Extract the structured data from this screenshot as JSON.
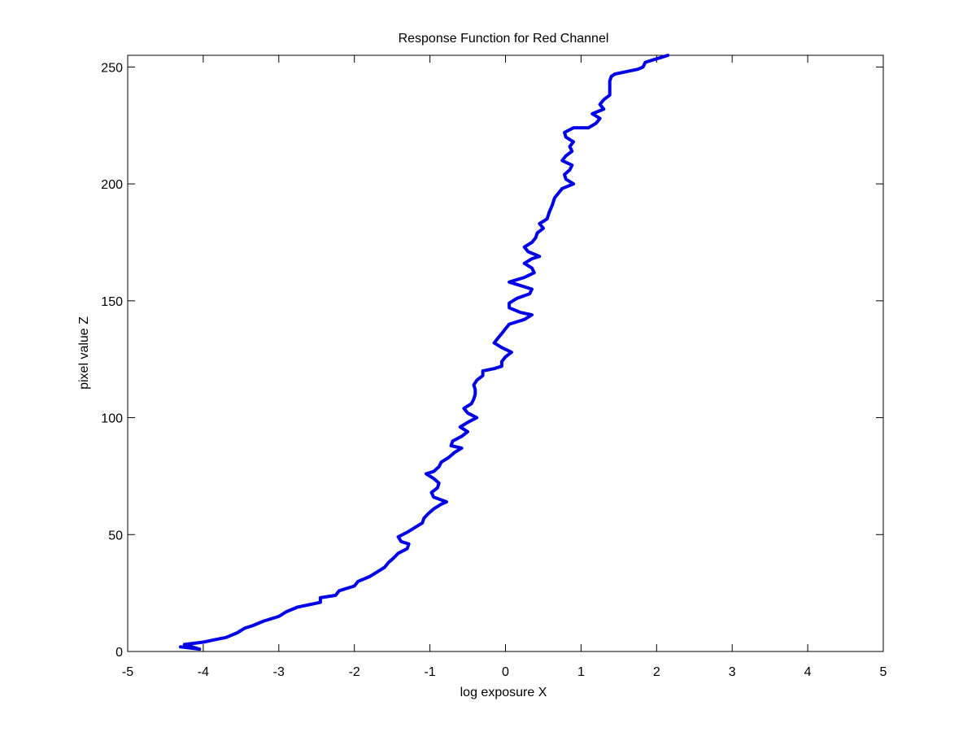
{
  "chart_data": {
    "type": "line",
    "title": "Response Function for Red Channel",
    "xlabel": "log exposure X",
    "ylabel": "pixel value Z",
    "xlim": [
      -5,
      5
    ],
    "ylim": [
      0,
      255
    ],
    "xticks": [
      -5,
      -4,
      -3,
      -2,
      -1,
      0,
      1,
      2,
      3,
      4,
      5
    ],
    "yticks": [
      0,
      50,
      100,
      150,
      200,
      250
    ],
    "grid": false,
    "series": [
      {
        "color": "#0000e6",
        "points": [
          [
            -4.3,
            2
          ],
          [
            -4.05,
            1
          ],
          [
            -4.25,
            3
          ],
          [
            -4.0,
            4
          ],
          [
            -3.85,
            5
          ],
          [
            -3.7,
            6
          ],
          [
            -3.55,
            8
          ],
          [
            -3.45,
            10
          ],
          [
            -3.35,
            11
          ],
          [
            -3.2,
            13
          ],
          [
            -3.0,
            15
          ],
          [
            -2.9,
            17
          ],
          [
            -2.75,
            19
          ],
          [
            -2.6,
            20
          ],
          [
            -2.45,
            21
          ],
          [
            -2.45,
            23
          ],
          [
            -2.25,
            24
          ],
          [
            -2.2,
            26
          ],
          [
            -2.0,
            28
          ],
          [
            -1.95,
            30
          ],
          [
            -1.8,
            32
          ],
          [
            -1.7,
            34
          ],
          [
            -1.6,
            36
          ],
          [
            -1.55,
            38
          ],
          [
            -1.48,
            40
          ],
          [
            -1.42,
            42
          ],
          [
            -1.3,
            44
          ],
          [
            -1.28,
            46
          ],
          [
            -1.38,
            47
          ],
          [
            -1.42,
            49
          ],
          [
            -1.3,
            51
          ],
          [
            -1.2,
            53
          ],
          [
            -1.1,
            55
          ],
          [
            -1.08,
            57
          ],
          [
            -1.02,
            59
          ],
          [
            -0.95,
            61
          ],
          [
            -0.85,
            63
          ],
          [
            -0.78,
            64
          ],
          [
            -0.95,
            66
          ],
          [
            -0.98,
            68
          ],
          [
            -0.9,
            70
          ],
          [
            -0.88,
            72
          ],
          [
            -0.95,
            74
          ],
          [
            -1.05,
            76
          ],
          [
            -0.95,
            77
          ],
          [
            -0.88,
            79
          ],
          [
            -0.85,
            81
          ],
          [
            -0.75,
            83
          ],
          [
            -0.68,
            85
          ],
          [
            -0.58,
            87
          ],
          [
            -0.72,
            88
          ],
          [
            -0.7,
            90
          ],
          [
            -0.58,
            92
          ],
          [
            -0.5,
            94
          ],
          [
            -0.6,
            96
          ],
          [
            -0.5,
            98
          ],
          [
            -0.38,
            100
          ],
          [
            -0.5,
            102
          ],
          [
            -0.55,
            104
          ],
          [
            -0.45,
            106
          ],
          [
            -0.42,
            108
          ],
          [
            -0.4,
            110
          ],
          [
            -0.4,
            112
          ],
          [
            -0.42,
            114
          ],
          [
            -0.38,
            116
          ],
          [
            -0.3,
            118
          ],
          [
            -0.3,
            120
          ],
          [
            -0.15,
            121
          ],
          [
            -0.05,
            122
          ],
          [
            -0.05,
            124
          ],
          [
            0.0,
            126
          ],
          [
            0.08,
            128
          ],
          [
            -0.05,
            130
          ],
          [
            -0.15,
            132
          ],
          [
            -0.1,
            134
          ],
          [
            -0.05,
            136
          ],
          [
            0.0,
            138
          ],
          [
            0.05,
            140
          ],
          [
            0.25,
            142
          ],
          [
            0.35,
            144
          ],
          [
            0.2,
            145
          ],
          [
            0.05,
            147
          ],
          [
            0.05,
            149
          ],
          [
            0.15,
            151
          ],
          [
            0.32,
            153
          ],
          [
            0.35,
            155
          ],
          [
            0.15,
            157
          ],
          [
            0.05,
            158
          ],
          [
            0.25,
            160
          ],
          [
            0.38,
            162
          ],
          [
            0.35,
            164
          ],
          [
            0.25,
            166
          ],
          [
            0.35,
            168
          ],
          [
            0.45,
            169
          ],
          [
            0.3,
            171
          ],
          [
            0.25,
            173
          ],
          [
            0.35,
            175
          ],
          [
            0.4,
            177
          ],
          [
            0.42,
            179
          ],
          [
            0.5,
            181
          ],
          [
            0.45,
            183
          ],
          [
            0.55,
            185
          ],
          [
            0.58,
            188
          ],
          [
            0.62,
            191
          ],
          [
            0.65,
            194
          ],
          [
            0.7,
            196
          ],
          [
            0.75,
            198
          ],
          [
            0.9,
            200
          ],
          [
            0.8,
            202
          ],
          [
            0.78,
            204
          ],
          [
            0.85,
            206
          ],
          [
            0.88,
            208
          ],
          [
            0.75,
            210
          ],
          [
            0.8,
            212
          ],
          [
            0.88,
            214
          ],
          [
            0.85,
            216
          ],
          [
            0.9,
            218
          ],
          [
            0.8,
            220
          ],
          [
            0.78,
            222
          ],
          [
            0.9,
            224
          ],
          [
            1.1,
            224
          ],
          [
            1.2,
            226
          ],
          [
            1.25,
            228
          ],
          [
            1.15,
            230
          ],
          [
            1.3,
            232
          ],
          [
            1.25,
            234
          ],
          [
            1.3,
            236
          ],
          [
            1.38,
            238
          ],
          [
            1.38,
            241
          ],
          [
            1.38,
            244
          ],
          [
            1.4,
            246
          ],
          [
            1.45,
            247
          ],
          [
            1.6,
            248
          ],
          [
            1.75,
            249
          ],
          [
            1.82,
            250
          ],
          [
            1.85,
            252
          ],
          [
            1.95,
            253
          ],
          [
            2.05,
            254
          ],
          [
            2.15,
            255
          ]
        ]
      }
    ]
  }
}
